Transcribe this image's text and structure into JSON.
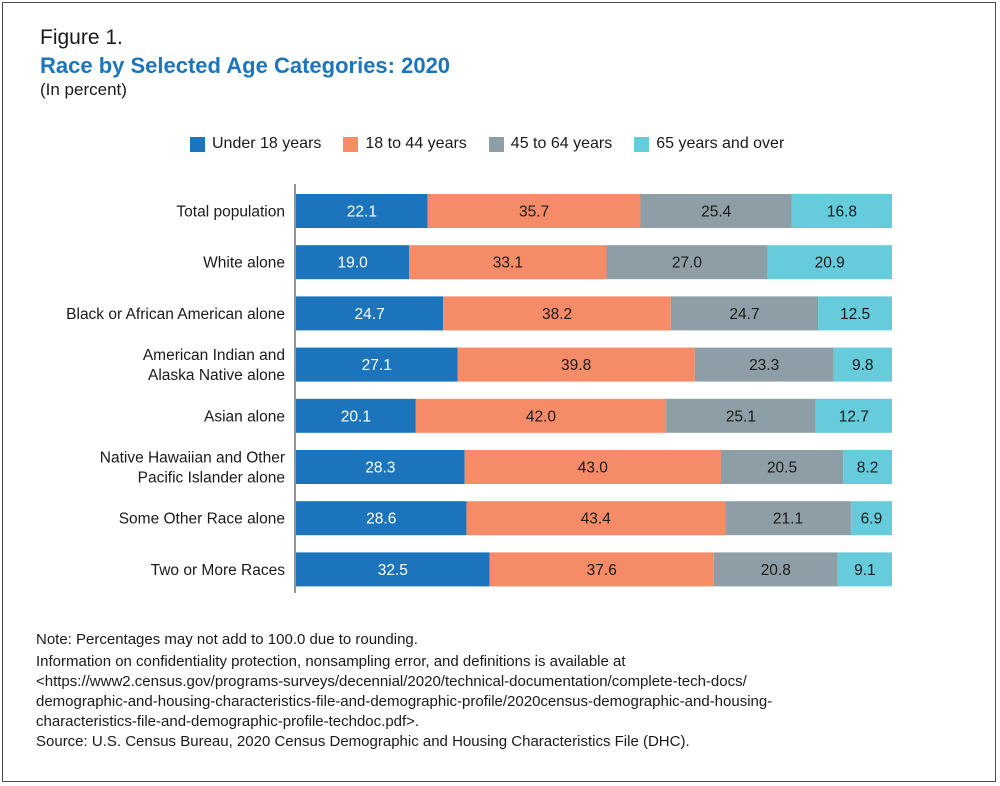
{
  "figure": {
    "label": "Figure 1.",
    "title": "Race by Selected Age Categories: 2020",
    "subtitle": "(In percent)"
  },
  "colors": {
    "title": "#1d75bc",
    "axis": "#707070"
  },
  "chart_data": {
    "type": "bar",
    "orientation": "horizontal",
    "stacked": true,
    "title": "Race by Selected Age Categories: 2020",
    "subtitle": "(In percent)",
    "xlabel": "",
    "ylabel": "",
    "xlim": [
      0,
      100
    ],
    "legend_position": "top",
    "categories": [
      "Total population",
      "White alone",
      "Black or African American alone",
      "American Indian and\nAlaska Native alone",
      "Asian alone",
      "Native Hawaiian and Other\nPacific Islander alone",
      "Some Other Race alone",
      "Two or More Races"
    ],
    "series": [
      {
        "name": "Under 18 years",
        "color": "#1c75bc",
        "label_color": "#ffffff",
        "values": [
          22.1,
          19.0,
          24.7,
          27.1,
          20.1,
          28.3,
          28.6,
          32.5
        ],
        "labels": [
          "22.1",
          "19.0",
          "24.7",
          "27.1",
          "20.1",
          "28.3",
          "28.6",
          "32.5"
        ]
      },
      {
        "name": "18 to 44 years",
        "color": "#f68b67",
        "label_color": "#1a1a1a",
        "values": [
          35.7,
          33.1,
          38.2,
          39.8,
          42.0,
          43.0,
          43.4,
          37.6
        ],
        "labels": [
          "35.7",
          "33.1",
          "38.2",
          "39.8",
          "42.0",
          "43.0",
          "43.4",
          "37.6"
        ]
      },
      {
        "name": "45 to 64 years",
        "color": "#8e9ea6",
        "label_color": "#1a1a1a",
        "values": [
          25.4,
          27.0,
          24.7,
          23.3,
          25.1,
          20.5,
          21.1,
          20.8
        ],
        "labels": [
          "25.4",
          "27.0",
          "24.7",
          "23.3",
          "25.1",
          "20.5",
          "21.1",
          "20.8"
        ]
      },
      {
        "name": "65 years and over",
        "color": "#66cbdb",
        "label_color": "#1a1a1a",
        "values": [
          16.8,
          20.9,
          12.5,
          9.8,
          12.7,
          8.2,
          6.9,
          9.1
        ],
        "labels": [
          "16.8",
          "20.9",
          "12.5",
          "9.8",
          "12.7",
          "8.2",
          "6.9",
          "9.1"
        ]
      }
    ]
  },
  "notes": {
    "note": "Note: Percentages may not add to 100.0 due to rounding.",
    "info_lines": [
      "Information on confidentiality protection, nonsampling error, and definitions is available at",
      "<https://www2.census.gov/programs-surveys/decennial/2020/technical-documentation/complete-tech-docs/",
      "demographic-and-housing-characteristics-file-and-demographic-profile/2020census-demographic-and-housing-",
      "characteristics-file-and-demographic-profile-techdoc.pdf>."
    ],
    "source": "Source: U.S. Census Bureau, 2020 Census Demographic and Housing Characteristics File (DHC)."
  }
}
